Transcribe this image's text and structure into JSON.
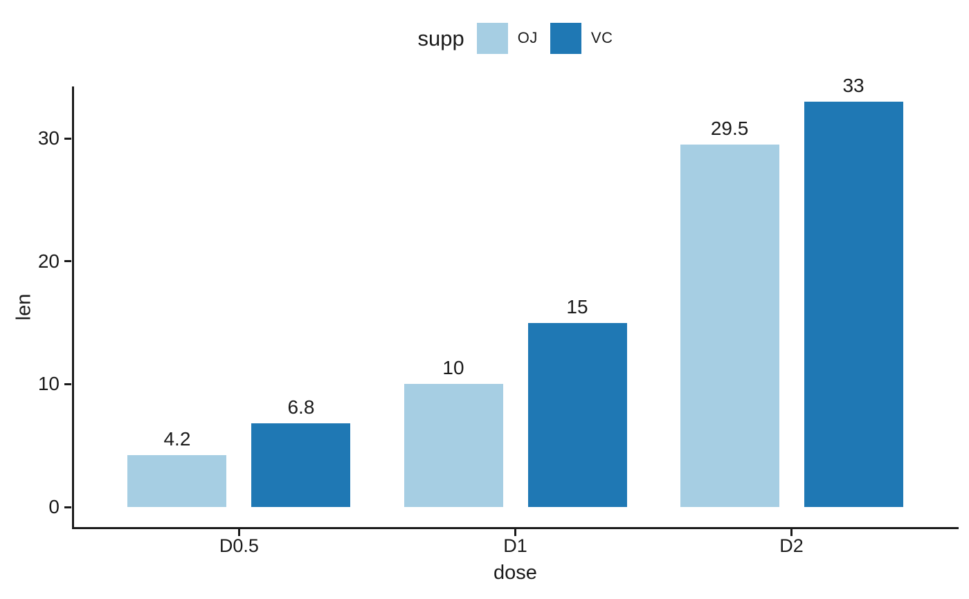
{
  "chart_data": {
    "type": "bar",
    "title": "",
    "categories": [
      "D0.5",
      "D1",
      "D2"
    ],
    "series": [
      {
        "name": "OJ",
        "color": "#A6CEE3",
        "values": [
          4.2,
          10,
          29.5
        ]
      },
      {
        "name": "VC",
        "color": "#1F78B4",
        "values": [
          6.8,
          15,
          33
        ]
      }
    ],
    "bar_value_labels": [
      [
        "4.2",
        "10",
        "29.5"
      ],
      [
        "6.8",
        "15",
        "33"
      ]
    ],
    "xlabel": "dose",
    "ylabel": "len",
    "y_ticks": [
      "0",
      "10",
      "20",
      "30"
    ],
    "y_tick_values": [
      0,
      10,
      20,
      30
    ],
    "ylim": [
      0,
      34.2
    ],
    "grid": "off",
    "legend_title": "supp",
    "legend_position": "top",
    "colors": {
      "bar_oj": "#A6CEE3",
      "bar_vc": "#1F78B4",
      "axis": "#1a1a1a",
      "text": "#1a1a1a",
      "background": "#ffffff"
    }
  }
}
